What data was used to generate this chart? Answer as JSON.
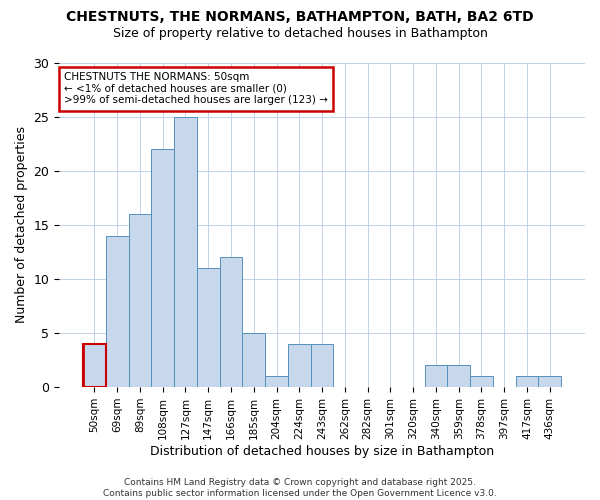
{
  "title_line1": "CHESTNUTS, THE NORMANS, BATHAMPTON, BATH, BA2 6TD",
  "title_line2": "Size of property relative to detached houses in Bathampton",
  "xlabel": "Distribution of detached houses by size in Bathampton",
  "ylabel": "Number of detached properties",
  "bar_labels": [
    "50sqm",
    "69sqm",
    "89sqm",
    "108sqm",
    "127sqm",
    "147sqm",
    "166sqm",
    "185sqm",
    "204sqm",
    "224sqm",
    "243sqm",
    "262sqm",
    "282sqm",
    "301sqm",
    "320sqm",
    "340sqm",
    "359sqm",
    "378sqm",
    "397sqm",
    "417sqm",
    "436sqm"
  ],
  "bar_values": [
    4,
    14,
    16,
    22,
    25,
    11,
    12,
    5,
    1,
    4,
    4,
    0,
    0,
    0,
    0,
    2,
    2,
    1,
    0,
    1,
    1
  ],
  "bar_color": "#c8d8ec",
  "bar_edge_color": "#5590bb",
  "ylim": [
    0,
    30
  ],
  "yticks": [
    0,
    5,
    10,
    15,
    20,
    25,
    30
  ],
  "annotation_title": "CHESTNUTS THE NORMANS: 50sqm",
  "annotation_line2": "← <1% of detached houses are smaller (0)",
  "annotation_line3": ">99% of semi-detached houses are larger (123) →",
  "annotation_box_color": "#ffffff",
  "annotation_box_edge": "#cc0000",
  "highlight_bar_index": 0,
  "highlight_bar_edge_color": "#cc0000",
  "background_color": "#ffffff",
  "grid_color": "#b8cce4",
  "footer_line1": "Contains HM Land Registry data © Crown copyright and database right 2025.",
  "footer_line2": "Contains public sector information licensed under the Open Government Licence v3.0."
}
